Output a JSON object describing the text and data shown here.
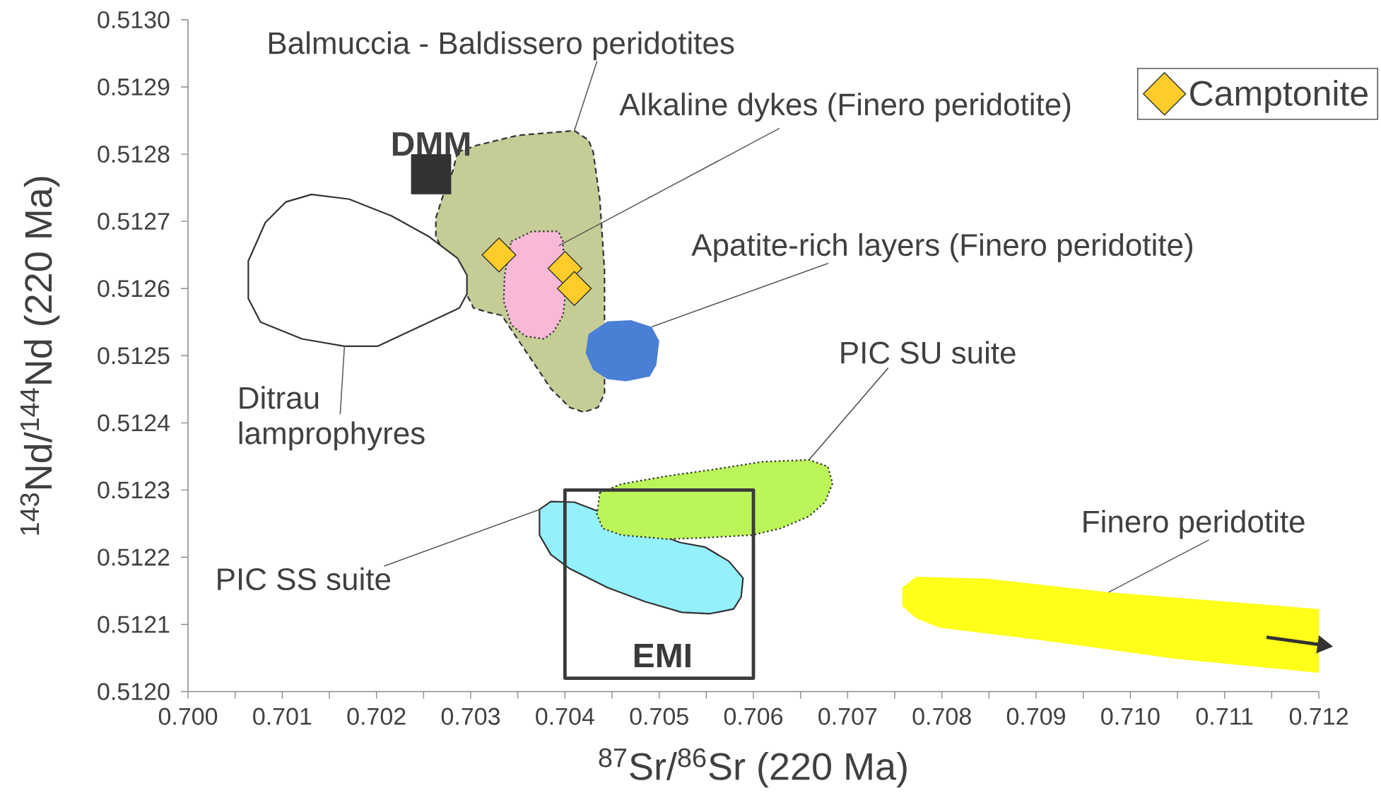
{
  "chart_data": {
    "type": "scatter",
    "xlabel": "$^{87}$Sr/$^{86}$Sr (220 Ma)",
    "ylabel": "$^{143}$Nd/$^{144}$Nd (220 Ma)",
    "xlim": [
      0.7,
      0.712
    ],
    "ylim": [
      0.512,
      0.513
    ],
    "xticks": [
      {
        "value": 0.7,
        "label": "0.700"
      },
      {
        "value": 0.7005,
        "label": null
      },
      0.701,
      {
        "value": 0.7015,
        "label": null
      },
      0.702,
      {
        "value": 0.7025,
        "label": null
      },
      0.703,
      {
        "value": 0.7035,
        "label": null
      },
      0.704,
      {
        "value": 0.7045,
        "label": null
      },
      0.705,
      {
        "value": 0.7055,
        "label": null
      },
      0.706,
      {
        "value": 0.7065,
        "label": null
      },
      0.707,
      {
        "value": 0.7075,
        "label": null
      },
      0.708,
      {
        "value": 0.7085,
        "label": null
      },
      0.709,
      {
        "value": 0.7095,
        "label": null
      },
      {
        "value": 0.71,
        "label": "0.710"
      },
      {
        "value": 0.7105,
        "label": null
      },
      0.711,
      {
        "value": 0.7115,
        "label": null
      },
      0.712
    ],
    "yticks": [
      {
        "value": 0.512,
        "label": "0.5120"
      },
      0.5121,
      0.5122,
      0.5123,
      0.5124,
      0.5125,
      0.5126,
      0.5127,
      0.5128,
      0.5129,
      {
        "value": 0.513,
        "label": "0.5130"
      }
    ],
    "legend": "top right",
    "annotations": [
      {
        "text": "DMM",
        "x": 0.70258,
        "y": 0.51277
      }
    ],
    "series": [
      {
        "name": "Balmuccia - Baldissero peridotites",
        "type": "area",
        "color": "#c5cc96",
        "line_style": "dashed",
        "x": [
          0.70286,
          0.70306,
          0.7035,
          0.7041,
          0.70425,
          0.7043,
          0.70437,
          0.70442,
          0.70442,
          0.70435,
          0.7042,
          0.70405,
          0.70385,
          0.70365,
          0.70352,
          0.70333,
          0.7032,
          0.70303,
          0.70298,
          0.70263,
          0.70263,
          0.70271,
          0.70281
        ],
        "values": [
          0.512803,
          0.512813,
          0.512828,
          0.512835,
          0.512821,
          0.512803,
          0.512733,
          0.512627,
          0.512444,
          0.512423,
          0.512416,
          0.512423,
          0.512451,
          0.512493,
          0.51252,
          0.51256,
          0.512564,
          0.512571,
          0.512585,
          0.512677,
          0.512705,
          0.51274,
          0.512775
        ]
      },
      {
        "name": "Ditrau lamprophyres",
        "type": "area",
        "color": "#ffffff",
        "line_style": "solid",
        "x": [
          0.70104,
          0.70131,
          0.70171,
          0.70216,
          0.70256,
          0.70286,
          0.70296,
          0.70296,
          0.70288,
          0.70256,
          0.70201,
          0.70166,
          0.70121,
          0.70077,
          0.70064,
          0.70064,
          0.70082
        ],
        "values": [
          0.512729,
          0.51274,
          0.512733,
          0.512708,
          0.512677,
          0.512645,
          0.51262,
          0.512592,
          0.512571,
          0.51255,
          0.512514,
          0.512514,
          0.512525,
          0.51255,
          0.512585,
          0.512641,
          0.512698
        ]
      },
      {
        "name": "Alkaline dykes (Finero peridotite)",
        "type": "area",
        "color": "#f8b9d7",
        "line_style": "dotted",
        "x": [
          0.70343,
          0.70365,
          0.70393,
          0.70398,
          0.704,
          0.70398,
          0.70388,
          0.70378,
          0.70358,
          0.70343,
          0.70335,
          0.70336
        ],
        "values": [
          0.51267,
          0.512685,
          0.512685,
          0.51267,
          0.512585,
          0.51256,
          0.512536,
          0.512525,
          0.512529,
          0.512546,
          0.512581,
          0.51262
        ]
      },
      {
        "name": "Apatite-rich layers (Finero peridotite)",
        "type": "area",
        "color": "#4a7fd6",
        "x": [
          0.70425,
          0.70445,
          0.7047,
          0.70492,
          0.705,
          0.70497,
          0.7049,
          0.70465,
          0.70445,
          0.7043,
          0.70422
        ],
        "values": [
          0.512532,
          0.512551,
          0.512553,
          0.512543,
          0.512522,
          0.512486,
          0.512469,
          0.512462,
          0.512465,
          0.512479,
          0.512504
        ]
      },
      {
        "name": "PIC SS suite",
        "type": "area",
        "color": "#94f0fb",
        "line_style": "solid",
        "x": [
          0.70373,
          0.70385,
          0.7041,
          0.70522,
          0.70549,
          0.70574,
          0.70589,
          0.70587,
          0.70579,
          0.70554,
          0.70524,
          0.70485,
          0.70445,
          0.70405,
          0.70385,
          0.70373
        ],
        "values": [
          0.512271,
          0.512283,
          0.512282,
          0.512222,
          0.512215,
          0.512194,
          0.512169,
          0.512141,
          0.512123,
          0.512116,
          0.512118,
          0.512134,
          0.512155,
          0.512183,
          0.512204,
          0.512233
        ]
      },
      {
        "name": "PIC SU suite",
        "type": "area",
        "color": "#bcf55a",
        "line_style": "dotted",
        "x": [
          0.70437,
          0.7046,
          0.70509,
          0.70559,
          0.70609,
          0.70659,
          0.70679,
          0.70684,
          0.70676,
          0.70659,
          0.70629,
          0.70599,
          0.70549,
          0.70509,
          0.7046,
          0.7044,
          0.70434
        ],
        "values": [
          0.512296,
          0.512309,
          0.512321,
          0.512331,
          0.512342,
          0.512345,
          0.512335,
          0.51231,
          0.512282,
          0.512261,
          0.512243,
          0.512233,
          0.512229,
          0.512227,
          0.512233,
          0.512243,
          0.512264
        ]
      },
      {
        "name": "Finero peridotite",
        "type": "area",
        "color": "#ffff1a",
        "x": [
          0.70773,
          0.70848,
          0.70977,
          0.712,
          0.712,
          0.71047,
          0.70898,
          0.70798,
          0.70773,
          0.70758,
          0.70758
        ],
        "values": [
          0.512171,
          0.512168,
          0.512148,
          0.512123,
          0.512028,
          0.512049,
          0.512078,
          0.512095,
          0.512109,
          0.512127,
          0.512155
        ]
      },
      {
        "name": "EMI",
        "type": "line",
        "color": "#3a3a3a",
        "x": [
          0.704,
          0.706,
          0.706,
          0.704,
          0.704,
          0.705
        ],
        "values": [
          0.51202,
          0.51202,
          0.5123,
          0.5123,
          0.51202,
          0.51202
        ]
      },
      {
        "marker": "square",
        "color": "#333333",
        "x": [
          0.70258
        ],
        "values": [
          0.51277
        ]
      },
      {
        "name": "Camptonite",
        "marker": "diamond",
        "color": "#ffcc29",
        "x": [
          0.7033,
          0.704,
          0.7041
        ],
        "values": [
          0.51265,
          0.51263,
          0.5126
        ]
      }
    ]
  }
}
